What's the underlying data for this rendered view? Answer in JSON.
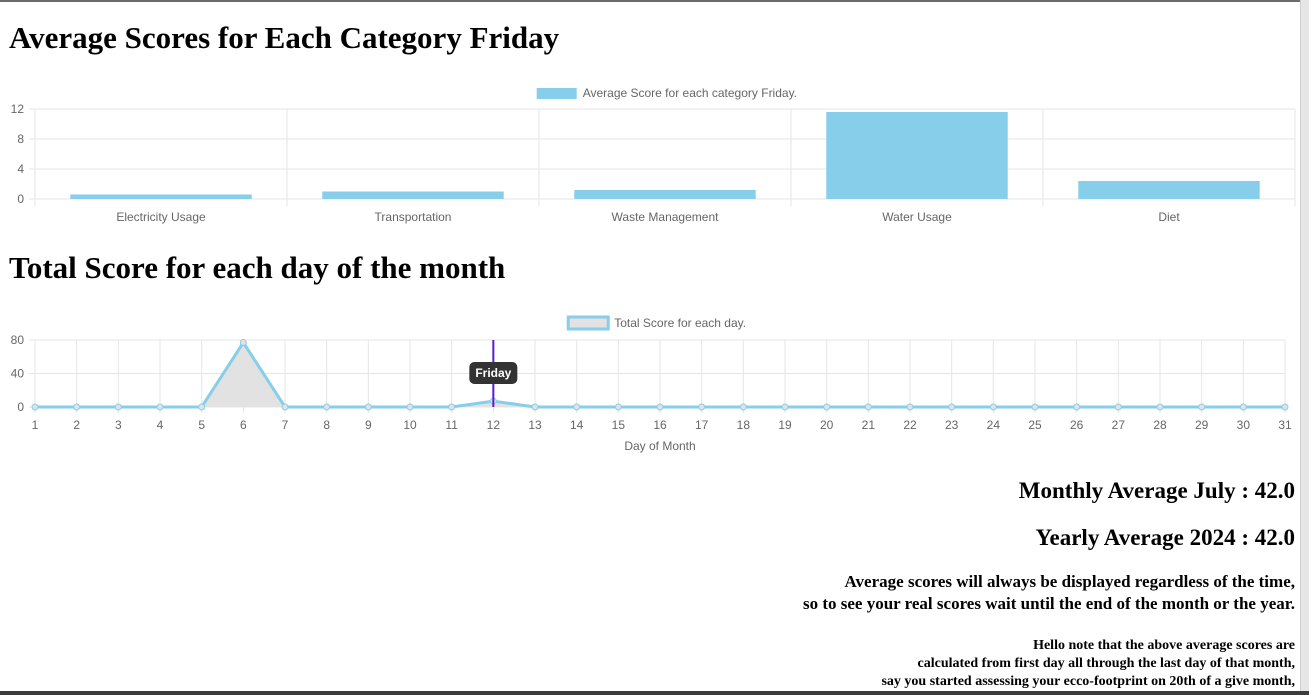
{
  "headings": {
    "category_title": "Average Scores for Each Category Friday",
    "daily_title": "Total Score for each day of the month"
  },
  "colors": {
    "bar_fill": "#87ceeb",
    "line_stroke": "#87ceeb",
    "area_fill": "#e2e2e2",
    "grid": "#e5e5e5",
    "tick_text": "#666666",
    "hover_line": "#5b1bd6",
    "tooltip_bg": "#333333"
  },
  "chart_data": [
    {
      "type": "bar",
      "legend": "Average Score for each category Friday.",
      "legend_position": "top",
      "categories": [
        "Electricity Usage",
        "Transportation",
        "Waste Management",
        "Water Usage",
        "Diet"
      ],
      "values": [
        0.6,
        1.0,
        1.2,
        11.6,
        2.4
      ],
      "yticks": [
        "0",
        "4",
        "8",
        "12"
      ],
      "ylim": [
        0,
        12
      ],
      "grid": true
    },
    {
      "type": "area",
      "legend": "Total Score for each day.",
      "legend_position": "top",
      "x": [
        1,
        2,
        3,
        4,
        5,
        6,
        7,
        8,
        9,
        10,
        11,
        12,
        13,
        14,
        15,
        16,
        17,
        18,
        19,
        20,
        21,
        22,
        23,
        24,
        25,
        26,
        27,
        28,
        29,
        30,
        31
      ],
      "values": [
        0,
        0,
        0,
        0,
        0,
        77,
        0,
        0,
        0,
        0,
        0,
        7,
        0,
        0,
        0,
        0,
        0,
        0,
        0,
        0,
        0,
        0,
        0,
        0,
        0,
        0,
        0,
        0,
        0,
        0,
        0
      ],
      "xlabel": "Day of Month",
      "yticks": [
        "0",
        "40",
        "80"
      ],
      "ylim": [
        0,
        80
      ],
      "grid": true,
      "tooltip": {
        "x": 12,
        "label": "Friday"
      }
    }
  ],
  "summary": {
    "monthly_average": "Monthly Average July : 42.0",
    "yearly_average": "Yearly Average 2024 : 42.0"
  },
  "notes": {
    "info_lines": [
      "Average scores will always be displayed regardless of the time,",
      "so to see your real scores wait until the end of the month or the year."
    ],
    "hello_lines": [
      "Hello note that the above average scores are",
      "calculated from first day all through the last day of that month,",
      "say you started assessing your ecco-footprint on 20th of a give month,"
    ]
  }
}
